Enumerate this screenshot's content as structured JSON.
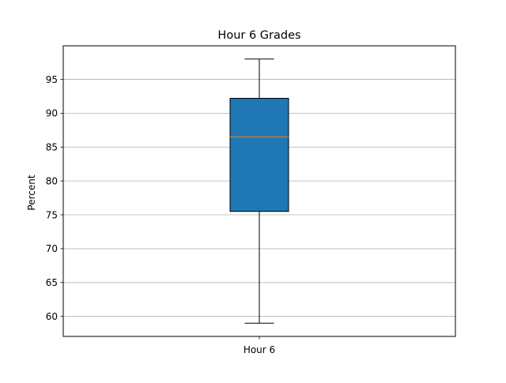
{
  "chart_data": {
    "type": "box",
    "title": "Hour 6 Grades",
    "xlabel": "",
    "ylabel": "Percent",
    "categories": [
      "Hour 6"
    ],
    "boxes": [
      {
        "name": "Hour 6",
        "whisker_low": 59,
        "q1": 75.5,
        "median": 86.5,
        "q3": 92.2,
        "whisker_high": 98
      }
    ],
    "yticks": [
      60,
      65,
      70,
      75,
      80,
      85,
      90,
      95
    ],
    "ytick_labels": [
      "60",
      "65",
      "70",
      "75",
      "80",
      "85",
      "90",
      "95"
    ],
    "ylim": [
      57.05,
      99.95
    ],
    "grid": "y-major",
    "legend": "none",
    "colors": {
      "box_fill": "#1f77b4",
      "median_line": "#ff7f0e",
      "grid": "#b0b0b0",
      "axes": "#000000"
    }
  }
}
